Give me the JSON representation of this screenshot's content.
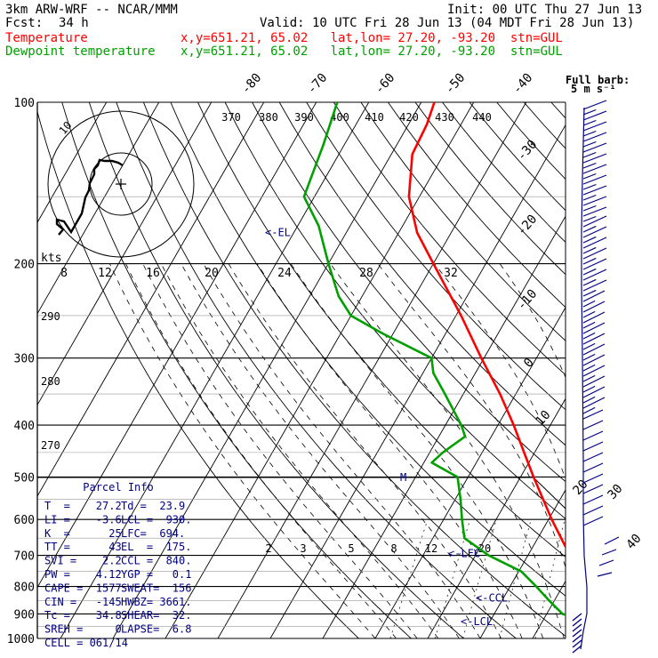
{
  "header": {
    "model": "3km ARW-WRF -- NCAR/MMM",
    "init": "Init: 00 UTC Thu 27 Jun 13",
    "fcst_label": "Fcst:",
    "fcst_value": "34 h",
    "valid": "Valid: 10 UTC Fri 28 Jun 13 (04 MDT Fri 28 Jun 13)"
  },
  "legend": [
    {
      "name": "Temperature",
      "info": "x,y=651.21, 65.02   lat,lon= 27.20, -93.20  stn=GUL",
      "color": "#ff0000"
    },
    {
      "name": "Dewpoint temperature",
      "info": "x,y=651.21, 65.02   lat,lon= 27.20, -93.20  stn=GUL",
      "color": "#00a000"
    }
  ],
  "full_barb_label": [
    "Full barb:",
    "5 m s⁻¹"
  ],
  "hodograph": {
    "units": "kts",
    "ring_label": "10"
  },
  "chart_data": {
    "type": "skew-T log-p sounding",
    "pressure_levels": [
      100,
      200,
      300,
      400,
      500,
      600,
      700,
      800,
      900,
      1000
    ],
    "temperature_isotherm_labels": [
      "-80",
      "-70",
      "-60",
      "-50",
      "-40",
      "-30",
      "-20",
      "-10",
      "0",
      "10",
      "20",
      "30",
      "40"
    ],
    "theta_labels": [
      "370",
      "380",
      "390",
      "400",
      "410",
      "420",
      "430",
      "440"
    ],
    "theta_side_labels": [
      "290",
      "280",
      "270"
    ],
    "mixing_ratio_labels": [
      "2",
      "3",
      "5",
      "8",
      "12",
      "20"
    ],
    "hodograph_speed_labels": [
      "8",
      "12",
      "16",
      "20",
      "24",
      "28",
      "32"
    ],
    "temperature": [
      {
        "p": 1000,
        "t": 27.2
      },
      {
        "p": 975,
        "t": 24.0
      },
      {
        "p": 950,
        "t": 22.0
      },
      {
        "p": 925,
        "t": 20.3
      },
      {
        "p": 900,
        "t": 18.5
      },
      {
        "p": 850,
        "t": 16.6
      },
      {
        "p": 825,
        "t": 15.5
      },
      {
        "p": 800,
        "t": 14.2
      },
      {
        "p": 700,
        "t": 8.0
      },
      {
        "p": 600,
        "t": 0.6
      },
      {
        "p": 500,
        "t": -7.5
      },
      {
        "p": 450,
        "t": -12.0
      },
      {
        "p": 400,
        "t": -17.0
      },
      {
        "p": 350,
        "t": -23.0
      },
      {
        "p": 300,
        "t": -30.5
      },
      {
        "p": 250,
        "t": -39.0
      },
      {
        "p": 200,
        "t": -50.0
      },
      {
        "p": 175,
        "t": -56.5
      },
      {
        "p": 150,
        "t": -62.0
      },
      {
        "p": 125,
        "t": -66.0
      },
      {
        "p": 110,
        "t": -66.5
      },
      {
        "p": 100,
        "t": -67.5
      }
    ],
    "dewpoint": [
      {
        "p": 1000,
        "t": 23.9
      },
      {
        "p": 975,
        "t": 23.6
      },
      {
        "p": 950,
        "t": 23.2
      },
      {
        "p": 925,
        "t": 17.5
      },
      {
        "p": 900,
        "t": 13.0
      },
      {
        "p": 850,
        "t": 9.0
      },
      {
        "p": 800,
        "t": 5.0
      },
      {
        "p": 750,
        "t": 0.5
      },
      {
        "p": 700,
        "t": -7.5
      },
      {
        "p": 650,
        "t": -14.0
      },
      {
        "p": 600,
        "t": -16.5
      },
      {
        "p": 550,
        "t": -19.0
      },
      {
        "p": 500,
        "t": -22.0
      },
      {
        "p": 470,
        "t": -28.5
      },
      {
        "p": 450,
        "t": -27.5
      },
      {
        "p": 420,
        "t": -25.0
      },
      {
        "p": 400,
        "t": -27.0
      },
      {
        "p": 350,
        "t": -33.5
      },
      {
        "p": 320,
        "t": -38.0
      },
      {
        "p": 300,
        "t": -40.0
      },
      {
        "p": 270,
        "t": -52.0
      },
      {
        "p": 250,
        "t": -60.0
      },
      {
        "p": 230,
        "t": -64.5
      },
      {
        "p": 200,
        "t": -70.0
      },
      {
        "p": 170,
        "t": -76.0
      },
      {
        "p": 150,
        "t": -82.0
      },
      {
        "p": 120,
        "t": -84.0
      },
      {
        "p": 100,
        "t": -86.0
      }
    ],
    "level_markers": [
      {
        "label": "<-EL",
        "p": 175
      },
      {
        "label": "<-LFC",
        "p": 694
      },
      {
        "label": "<-CCL",
        "p": 840
      },
      {
        "label": "<-LCL",
        "p": 930
      }
    ]
  },
  "parcel_info": {
    "title": "Parcel Info",
    "rows": [
      [
        "T  =    27.2",
        "Td =  23.9"
      ],
      [
        "LI =    -3.6",
        "LCL =  930."
      ],
      [
        "K  =      25",
        "LFC=  694."
      ],
      [
        "TT =      43",
        "EL  =  175."
      ],
      [
        "SVI =    2.2",
        "CCL =  840."
      ],
      [
        "PW =    4.12",
        "YGP =   0.1"
      ],
      [
        "CAPE =  1577",
        "SWEAT=  156"
      ],
      [
        "CIN =   -145",
        "HWBZ= 3661."
      ],
      [
        "Tc =    34.8",
        "SHEAR=  32."
      ],
      [
        "SREH =     0",
        "LAPSE=  6.8"
      ],
      [
        "CELL = 061/14",
        ""
      ]
    ]
  }
}
